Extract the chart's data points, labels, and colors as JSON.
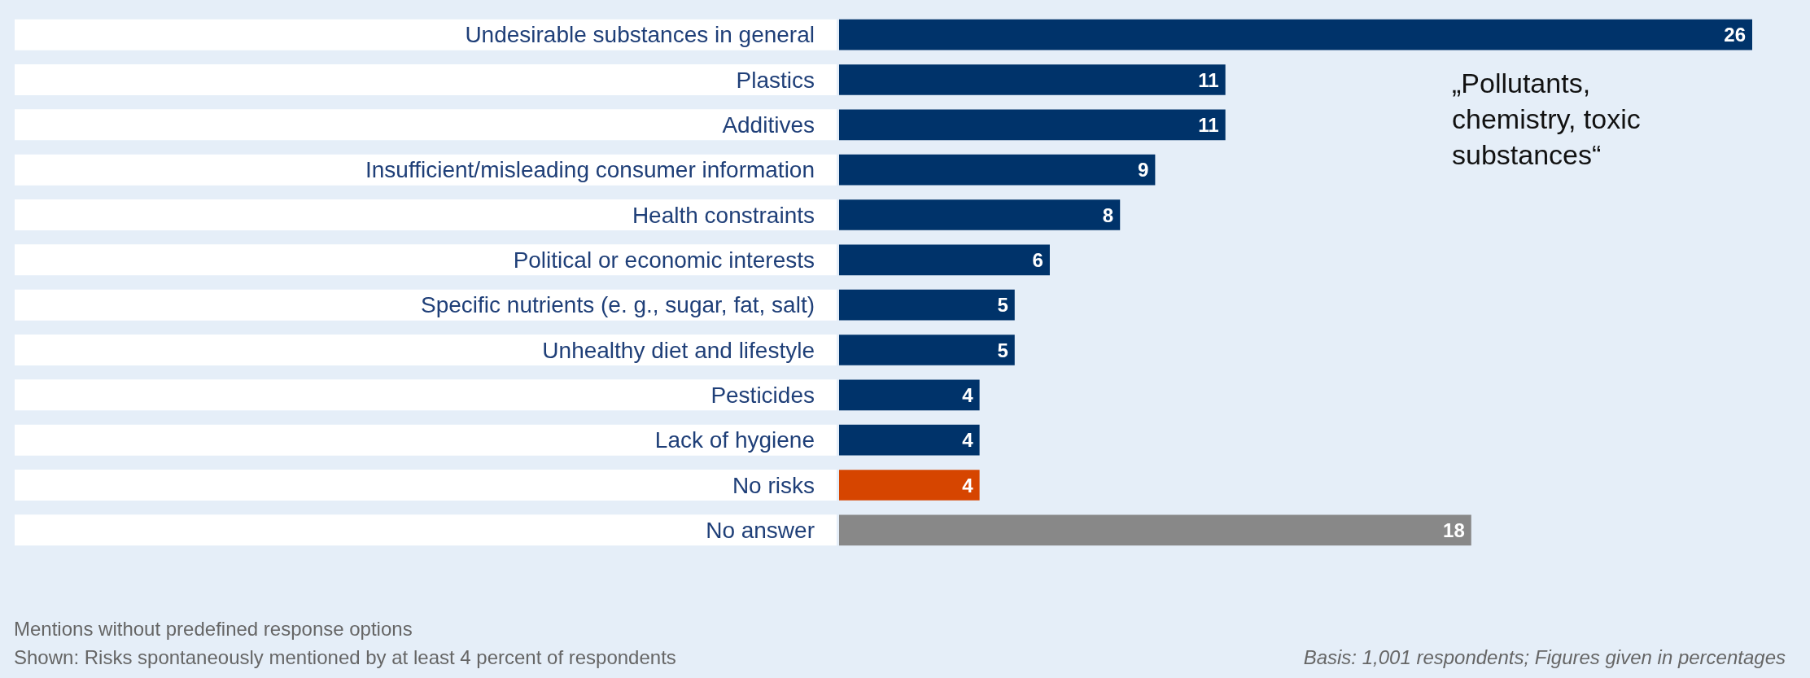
{
  "chart_data": {
    "type": "bar",
    "orientation": "horizontal",
    "categories": [
      "Undesirable substances in general",
      "Plastics",
      "Additives",
      "Insufficient/misleading consumer information",
      "Health constraints",
      "Political or economic interests",
      "Specific nutrients (e. g., sugar, fat, salt)",
      "Unhealthy diet and lifestyle",
      "Pesticides",
      "Lack of hygiene",
      "No risks",
      "No answer"
    ],
    "values": [
      26,
      11,
      11,
      9,
      8,
      6,
      5,
      5,
      4,
      4,
      4,
      18
    ],
    "colors": [
      "#00336a",
      "#00336a",
      "#00336a",
      "#00336a",
      "#00336a",
      "#00336a",
      "#00336a",
      "#00336a",
      "#00336a",
      "#00336a",
      "#d64500",
      "#888888"
    ],
    "data_labels": true,
    "annotations": [
      "„Pollutants, chemistry, toxic substances“",
      "Mentions without predefined response options",
      "Shown: Risks spontaneously mentioned by at least 4 percent of respondents",
      "Basis: 1,001 respondents; Figures given in percentages"
    ]
  }
}
